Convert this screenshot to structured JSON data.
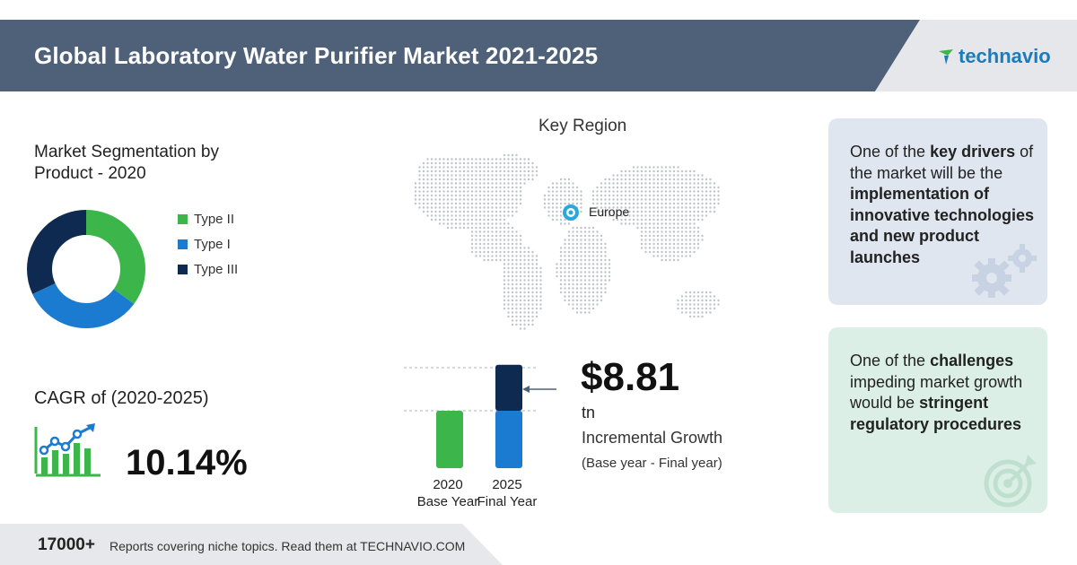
{
  "header": {
    "title": "Global Laboratory Water Purifier Market 2021-2025",
    "brand": "technavio"
  },
  "segmentation": {
    "title": "Market Segmentation by Product - 2020",
    "legend": [
      {
        "label": "Type II",
        "color": "#3cb54a"
      },
      {
        "label": "Type I",
        "color": "#1a7bd0"
      },
      {
        "label": "Type III",
        "color": "#0f2a50"
      }
    ]
  },
  "cagr": {
    "label": "CAGR of (2020-2025)",
    "value": "10.14%"
  },
  "key_region": {
    "title": "Key Region",
    "region": "Europe"
  },
  "growth": {
    "value": "$8.81",
    "unit": "tn",
    "label": "Incremental Growth",
    "period": "(Base year - Final year)",
    "years": [
      {
        "year": "2020",
        "label": "Base Year"
      },
      {
        "year": "2025",
        "label": "Final Year"
      }
    ]
  },
  "drivers_card": {
    "prefix": "One of the ",
    "key_term": "key drivers",
    "middle": " of the market will be the ",
    "highlight": "implementation of innovative technologies and new product launches"
  },
  "challenges_card": {
    "prefix": "One of the ",
    "key_term": "challenges",
    "middle": " impeding market growth would be ",
    "highlight": "stringent regulatory procedures"
  },
  "footer": {
    "count": "17000+",
    "text": "Reports covering niche topics. Read them at TECHNAVIO.COM"
  },
  "colors": {
    "header_bg": "#4f6178",
    "accent_green": "#3cb54a",
    "accent_blue": "#1a7bd0",
    "accent_navy": "#0f2a50"
  },
  "chart_data": [
    {
      "type": "pie",
      "categories": [
        "Type II",
        "Type I",
        "Type III"
      ],
      "values": [
        35,
        33,
        32
      ]
    },
    {
      "type": "bar",
      "categories": [
        "2020",
        "2025"
      ],
      "series": [
        {
          "name": "",
          "values": [
            1,
            1
          ]
        },
        {
          "name": "Incremental Growth",
          "values": [
            0,
            0.8
          ]
        }
      ]
    }
  ]
}
